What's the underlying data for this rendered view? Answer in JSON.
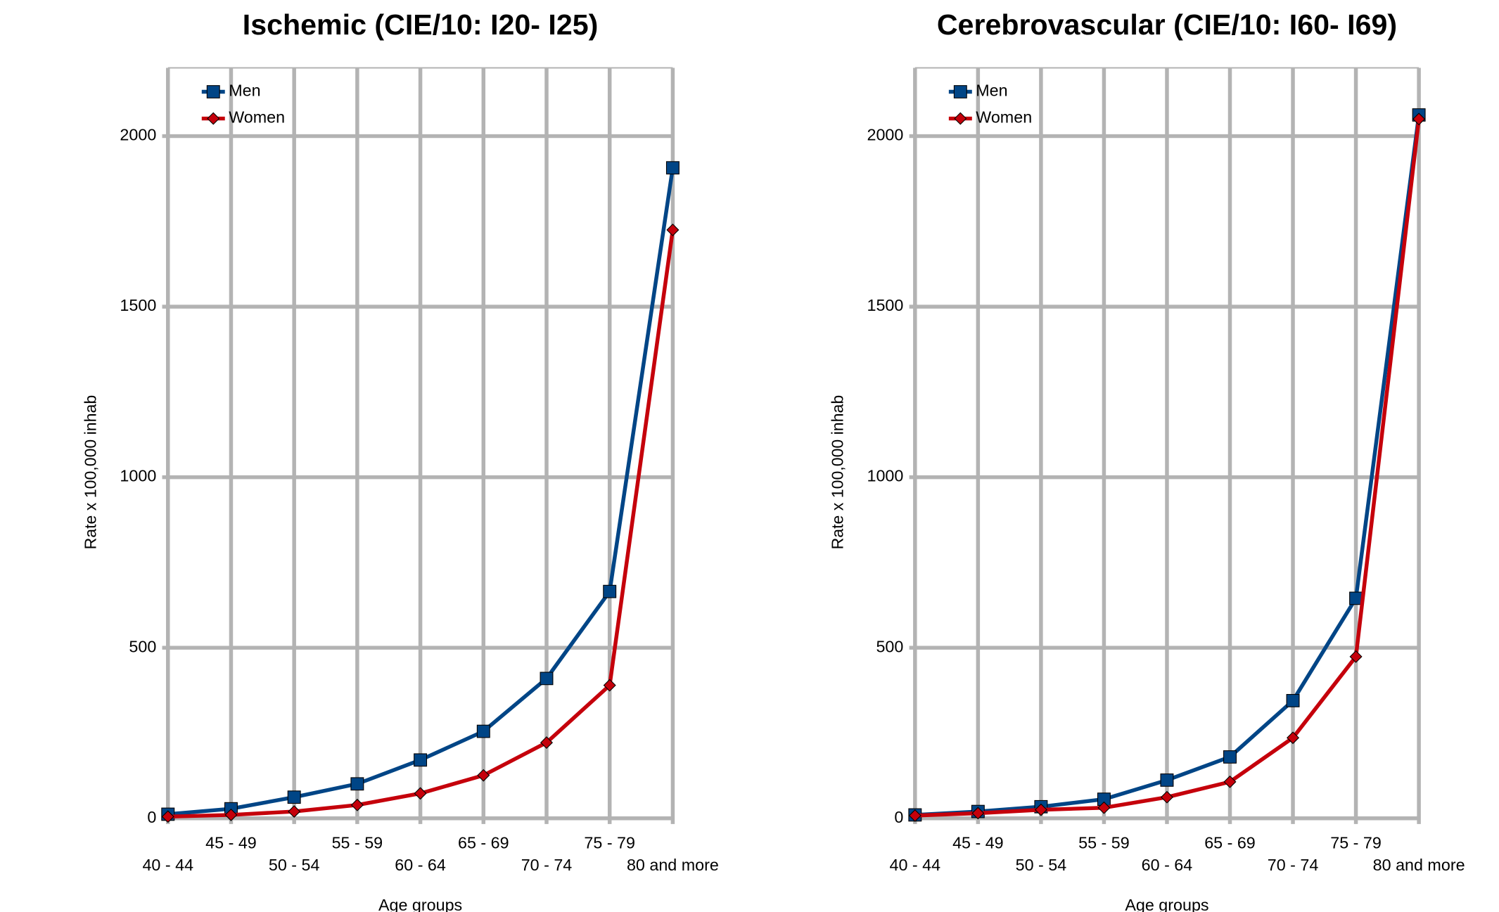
{
  "chart_data": [
    {
      "type": "line",
      "title": "Ischemic (CIE/10: I20- I25)",
      "x_label": "Age groups",
      "y_label": "Rate x 100,000 inhab",
      "categories": [
        "40 - 44",
        "45 - 49",
        "50 - 54",
        "55 - 59",
        "60 - 64",
        "65 - 69",
        "70 - 74",
        "75 - 79",
        "80 and more"
      ],
      "series": [
        {
          "name": "Men",
          "color": "#004586",
          "marker": "square",
          "values": [
            12,
            28,
            62,
            101,
            171,
            255,
            410,
            665,
            1907
          ]
        },
        {
          "name": "Women",
          "color": "#c5000b",
          "marker": "diamond",
          "values": [
            5,
            10,
            20,
            39,
            73,
            126,
            222,
            390,
            1725
          ]
        }
      ],
      "ylim": [
        0,
        2200
      ],
      "yticks": [
        0,
        500,
        1000,
        1500,
        2000
      ],
      "grid": true,
      "legend": "top-left"
    },
    {
      "type": "line",
      "title": "Cerebrovascular (CIE/10: I60- I69)",
      "x_label": "Age groups",
      "y_label": "Rate x 100,000 inhab",
      "categories": [
        "40 - 44",
        "45 - 49",
        "50 - 54",
        "55 - 59",
        "60 - 64",
        "65 - 69",
        "70 - 74",
        "75 - 79",
        "80 and more"
      ],
      "series": [
        {
          "name": "Men",
          "color": "#004586",
          "marker": "square",
          "values": [
            10,
            20,
            34,
            56,
            112,
            180,
            345,
            645,
            2062
          ]
        },
        {
          "name": "Women",
          "color": "#c5000b",
          "marker": "diamond",
          "values": [
            8,
            15,
            25,
            31,
            62,
            107,
            236,
            474,
            2050
          ]
        }
      ],
      "ylim": [
        0,
        2200
      ],
      "yticks": [
        0,
        500,
        1000,
        1500,
        2000
      ],
      "grid": true,
      "legend": "top-left"
    }
  ]
}
